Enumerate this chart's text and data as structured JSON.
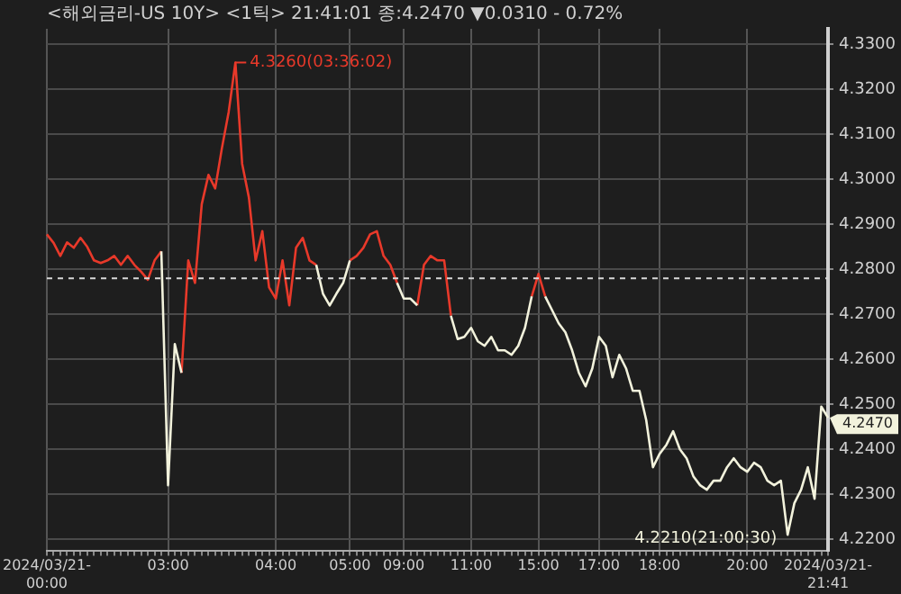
{
  "chart_data": {
    "type": "line",
    "title": "<해외금리-US 10Y> <1틱> 21:41:01 종:4.2470 ▼0.0310 - 0.72%",
    "categories": [
      "2024/03/21-00:00",
      null,
      null,
      null,
      null,
      null,
      null,
      null,
      null,
      null,
      null,
      null,
      null,
      null,
      null,
      null,
      null,
      null,
      "03:00",
      null,
      null,
      null,
      null,
      null,
      null,
      null,
      null,
      null,
      null,
      null,
      null,
      null,
      null,
      null,
      "04:00",
      null,
      null,
      null,
      null,
      null,
      null,
      null,
      null,
      null,
      null,
      "05:00",
      null,
      null,
      null,
      null,
      null,
      null,
      null,
      "09:00",
      null,
      null,
      null,
      null,
      null,
      null,
      null,
      null,
      null,
      "11:00",
      null,
      null,
      null,
      null,
      null,
      null,
      null,
      null,
      null,
      "15:00",
      null,
      null,
      null,
      null,
      null,
      null,
      null,
      null,
      "17:00",
      null,
      null,
      null,
      null,
      null,
      null,
      null,
      null,
      "18:00",
      null,
      null,
      null,
      null,
      null,
      null,
      null,
      null,
      null,
      null,
      null,
      null,
      "20:00",
      null,
      null,
      null,
      null,
      null,
      null,
      null,
      null,
      null,
      null,
      null,
      "2024/03/21-21:41"
    ],
    "series": [
      {
        "color": "#f2f2dc",
        "values": [
          null,
          null,
          null,
          null,
          null,
          null,
          null,
          null,
          null,
          null,
          null,
          null,
          null,
          null,
          null,
          null,
          null,
          4.284,
          4.232,
          4.2634,
          4.257,
          null,
          null,
          null,
          null,
          null,
          null,
          null,
          null,
          null,
          null,
          null,
          null,
          null,
          null,
          null,
          null,
          null,
          null,
          null,
          4.281,
          4.2746,
          4.272,
          4.2746,
          4.277,
          4.282,
          null,
          null,
          null,
          null,
          null,
          null,
          4.277,
          4.2735,
          4.2735,
          4.272,
          null,
          null,
          null,
          null,
          4.2697,
          4.2645,
          4.265,
          4.267,
          4.264,
          4.263,
          4.265,
          4.262,
          4.262,
          4.261,
          4.263,
          4.267,
          4.274,
          null,
          4.274,
          4.271,
          4.268,
          4.266,
          4.262,
          4.257,
          4.254,
          4.258,
          4.265,
          4.263,
          4.256,
          4.261,
          4.258,
          4.253,
          4.253,
          4.2465,
          4.236,
          4.239,
          4.241,
          4.244,
          4.24,
          4.238,
          4.234,
          4.232,
          4.231,
          4.233,
          4.233,
          4.236,
          4.238,
          4.236,
          4.235,
          4.237,
          4.236,
          4.233,
          4.232,
          4.233,
          4.221,
          4.228,
          4.231,
          4.236,
          4.229,
          4.2495,
          4.247
        ]
      },
      {
        "color": "#e8392a",
        "values": [
          4.2878,
          4.2859,
          4.283,
          4.286,
          4.2848,
          4.287,
          4.285,
          4.282,
          4.2814,
          4.282,
          4.283,
          4.281,
          4.283,
          4.281,
          4.2795,
          4.2777,
          4.282,
          4.284,
          null,
          null,
          4.257,
          4.282,
          4.277,
          4.2945,
          4.301,
          4.298,
          4.307,
          4.315,
          4.326,
          4.3035,
          4.296,
          4.282,
          4.2885,
          4.276,
          4.2735,
          4.282,
          4.272,
          4.2848,
          4.287,
          4.282,
          4.281,
          null,
          null,
          null,
          null,
          4.282,
          4.283,
          4.2848,
          4.2878,
          4.2885,
          4.283,
          4.281,
          4.277,
          null,
          null,
          4.272,
          4.281,
          4.283,
          4.282,
          4.282,
          4.2697,
          null,
          null,
          null,
          null,
          null,
          null,
          null,
          null,
          null,
          null,
          null,
          4.274,
          4.279,
          4.274,
          null,
          null,
          null,
          null,
          null,
          null,
          null,
          null,
          null,
          null,
          null,
          null,
          null,
          null,
          null,
          null,
          null,
          null,
          null,
          null,
          null,
          null,
          null,
          null,
          null,
          null,
          null,
          null,
          null,
          null,
          null,
          null,
          null,
          null,
          null,
          null,
          null,
          null,
          null,
          null,
          null,
          null
        ]
      }
    ],
    "ylim": [
      4.2175,
      4.3335
    ],
    "yticks": [
      {
        "value": 4.22,
        "label": "4.2200"
      },
      {
        "value": 4.23,
        "label": "4.2300"
      },
      {
        "value": 4.24,
        "label": "4.2400"
      },
      {
        "value": 4.25,
        "label": "4.2500"
      },
      {
        "value": 4.26,
        "label": "4.2600"
      },
      {
        "value": 4.27,
        "label": "4.2700"
      },
      {
        "value": 4.28,
        "label": "4.2800"
      },
      {
        "value": 4.29,
        "label": "4.2900"
      },
      {
        "value": 4.3,
        "label": "4.3000"
      },
      {
        "value": 4.31,
        "label": "4.3100"
      },
      {
        "value": 4.32,
        "label": "4.3200"
      },
      {
        "value": 4.33,
        "label": "4.3300"
      }
    ],
    "ref_lines": [
      {
        "axis": "y",
        "value": 4.278,
        "color": "#d8d8d8",
        "line_style": "dashed"
      }
    ],
    "annotations": [
      "4.3260(03:36:02)",
      "4.2210(21:00:30)",
      "4.2470"
    ],
    "grid": true,
    "legend": false
  }
}
